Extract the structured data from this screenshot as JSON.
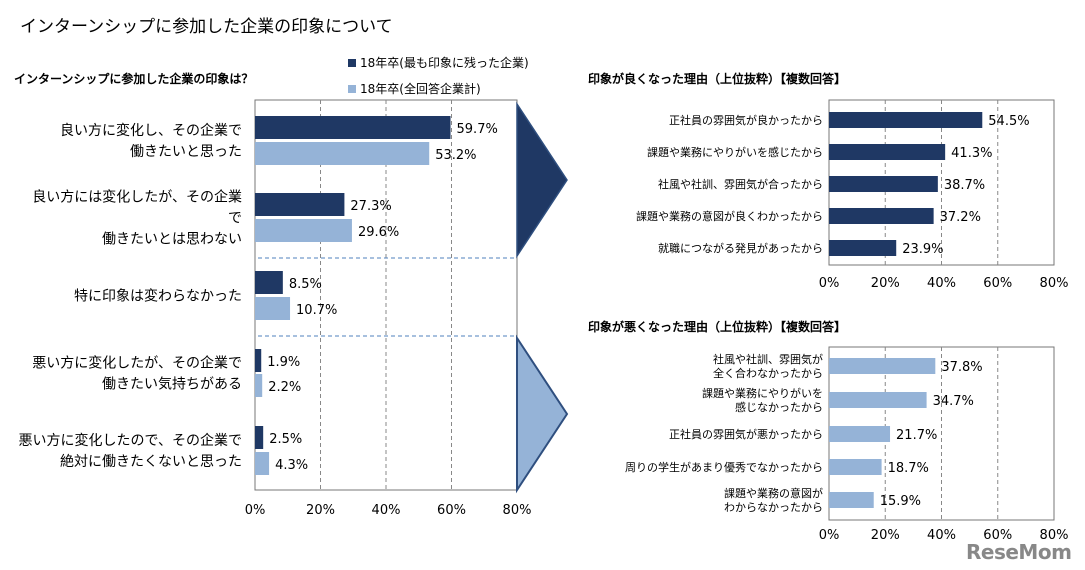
{
  "page_title": "インターンシップに参加した企業の印象について",
  "brand": "ReseMom",
  "colors": {
    "dark": "#1f3864",
    "light": "#95b3d7",
    "grid": "#888888"
  },
  "chart_data": [
    {
      "type": "bar",
      "orientation": "horizontal",
      "title": "インターンシップに参加した企業の印象は？",
      "categories": [
        [
          "良い方に変化し、その企業で",
          "働きたいと思った"
        ],
        [
          "良い方には変化したが、その企業",
          "で",
          "働きたいとは思わない"
        ],
        [
          "特に印象は変わらなかった"
        ],
        [
          "悪い方に変化したが、その企業で",
          "働きたい気持ちがある"
        ],
        [
          "悪い方に変化したので、その企業で",
          "絶対に働きたくないと思った"
        ]
      ],
      "series": [
        {
          "name": "18年卒(最も印象に残った企業)",
          "values": [
            59.7,
            27.3,
            8.5,
            1.9,
            2.5
          ],
          "labels": [
            "59.7%",
            "27.3%",
            "8.5%",
            "1.9%",
            "2.5%"
          ]
        },
        {
          "name": "18年卒(全回答企業計)",
          "values": [
            53.2,
            29.6,
            10.7,
            2.2,
            4.3
          ],
          "labels": [
            "53.2%",
            "29.6%",
            "10.7%",
            "2.2%",
            "4.3%"
          ]
        }
      ],
      "xlim": [
        0,
        80
      ],
      "ticks": [
        "0%",
        "20%",
        "40%",
        "60%",
        "80%"
      ],
      "grid": true,
      "legend": "top"
    },
    {
      "type": "bar",
      "orientation": "horizontal",
      "title": "印象が良くなった理由（上位抜粋）【複数回答】",
      "categories": [
        [
          "正社員の雰囲気が良かったから"
        ],
        [
          "課題や業務にやりがいを感じたから"
        ],
        [
          "社風や社訓、雰囲気が合ったから"
        ],
        [
          "課題や業務の意図が良くわかったから"
        ],
        [
          "就職につながる発見があったから"
        ]
      ],
      "values": [
        54.5,
        41.3,
        38.7,
        37.2,
        23.9
      ],
      "labels": [
        "54.5%",
        "41.3%",
        "38.7%",
        "37.2%",
        "23.9%"
      ],
      "xlim": [
        0,
        80
      ],
      "ticks": [
        "0%",
        "20%",
        "40%",
        "60%",
        "80%"
      ],
      "grid": true
    },
    {
      "type": "bar",
      "orientation": "horizontal",
      "title": "印象が悪くなった理由（上位抜粋）【複数回答】",
      "categories": [
        [
          "社風や社訓、雰囲気が",
          "全く合わなかったから"
        ],
        [
          "課題や業務にやりがいを",
          "感じなかったから"
        ],
        [
          "正社員の雰囲気が悪かったから"
        ],
        [
          "周りの学生があまり優秀でなかったから"
        ],
        [
          "課題や業務の意図が",
          "わからなかったから"
        ]
      ],
      "values": [
        37.8,
        34.7,
        21.7,
        18.7,
        15.9
      ],
      "labels": [
        "37.8%",
        "34.7%",
        "21.7%",
        "18.7%",
        "15.9%"
      ],
      "xlim": [
        0,
        80
      ],
      "ticks": [
        "0%",
        "20%",
        "40%",
        "60%",
        "80%"
      ],
      "grid": true
    }
  ]
}
